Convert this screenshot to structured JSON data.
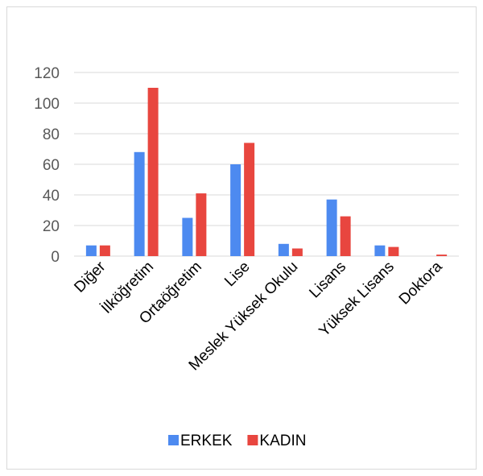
{
  "chart_data": {
    "type": "bar",
    "categories": [
      "Diğer",
      "İlköğretim",
      "Ortaöğretim",
      "Lise",
      "Meslek Yüksek Okulu",
      "Lisans",
      "Yüksek Lisans",
      "Doktora"
    ],
    "series": [
      {
        "name": "ERKEK",
        "color": "#4d8af0",
        "values": [
          7,
          68,
          25,
          60,
          8,
          37,
          7,
          0
        ]
      },
      {
        "name": "KADIN",
        "color": "#e8463f",
        "values": [
          7,
          110,
          41,
          74,
          5,
          26,
          6,
          1
        ]
      }
    ],
    "yticks": [
      0,
      20,
      40,
      60,
      80,
      100,
      120
    ],
    "ylim": [
      0,
      120
    ],
    "grid": true,
    "legend_position": "bottom"
  }
}
